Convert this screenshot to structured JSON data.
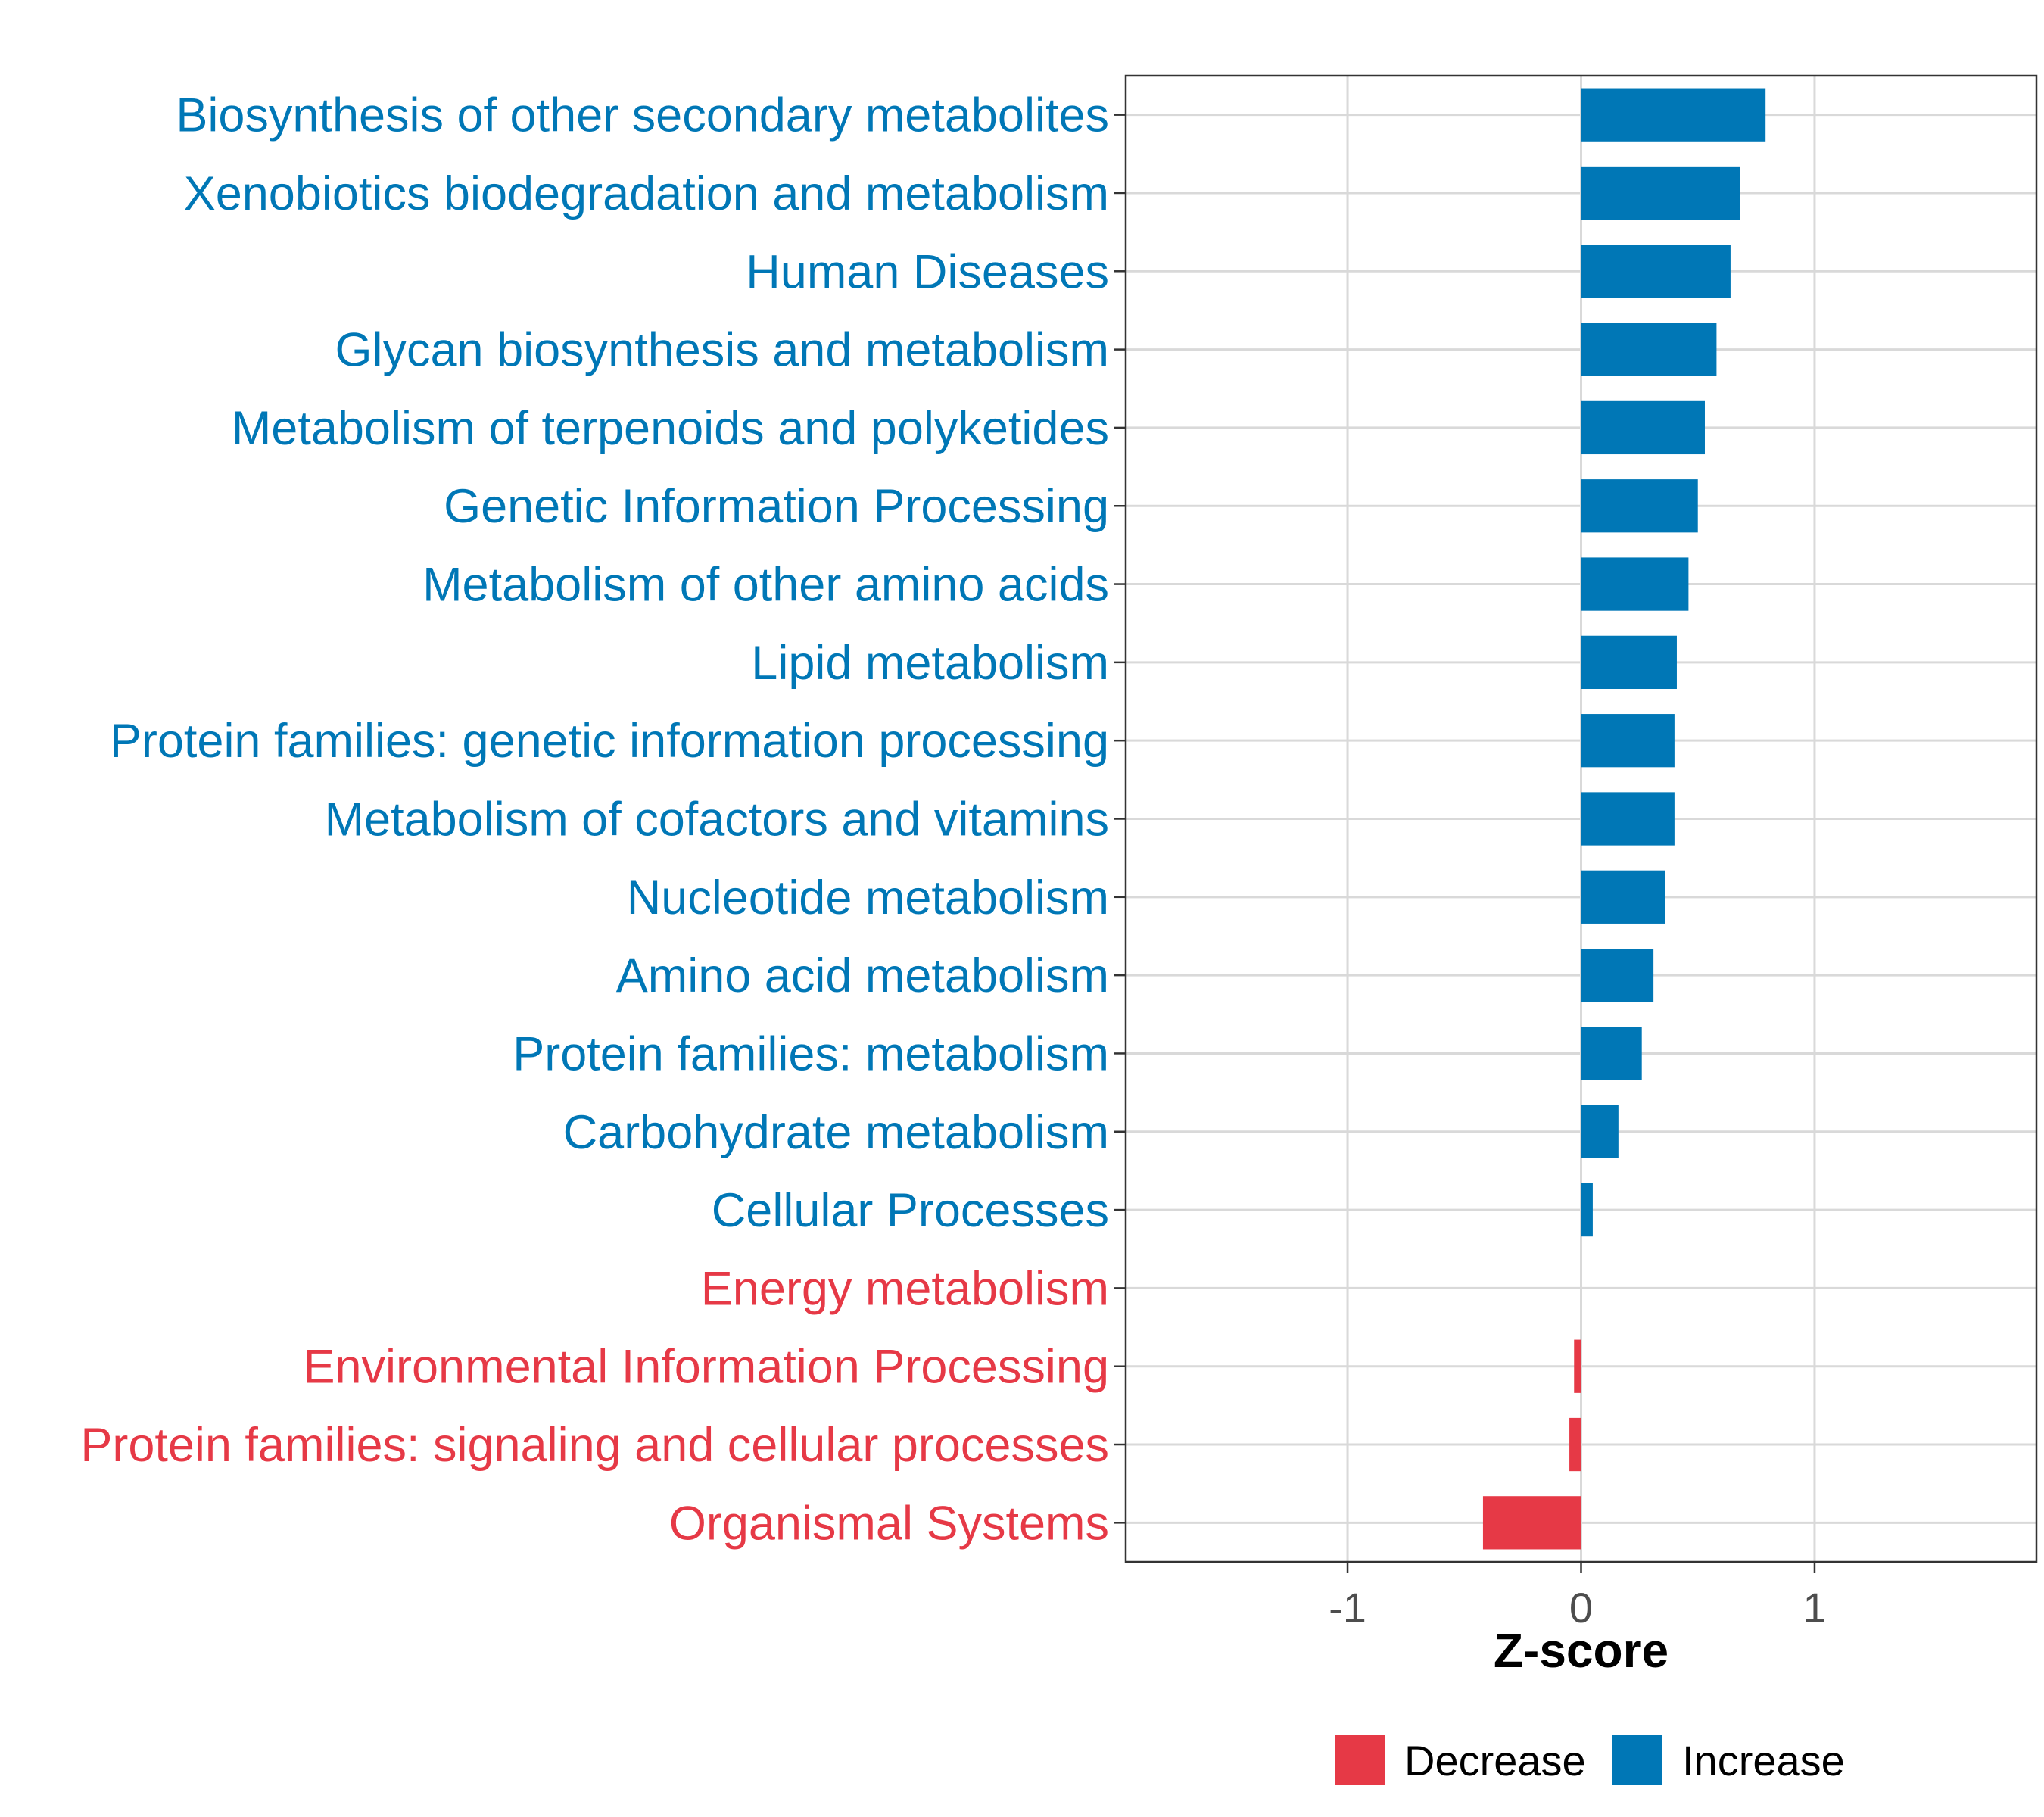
{
  "chart_data": {
    "type": "bar",
    "orientation": "horizontal",
    "title": "",
    "xlabel": "Z-score",
    "ylabel": "",
    "xlim": [
      -1.95,
      1.95
    ],
    "xticks": [
      -1,
      0,
      1
    ],
    "xtick_labels": [
      "-1",
      "0",
      "1"
    ],
    "grid": true,
    "categories": [
      "Biosynthesis of other secondary metabolites",
      "Xenobiotics biodegradation and metabolism",
      "Human Diseases",
      "Glycan biosynthesis and metabolism",
      "Metabolism of terpenoids and polyketides",
      "Genetic Information Processing",
      "Metabolism of other amino acids",
      "Lipid metabolism",
      "Protein families: genetic information processing",
      "Metabolism of cofactors and vitamins",
      "Nucleotide metabolism",
      "Amino acid metabolism",
      "Protein families: metabolism",
      "Carbohydrate metabolism",
      "Cellular Processes",
      "Energy metabolism",
      "Environmental Information Processing",
      "Protein families: signaling and cellular processes",
      "Organismal Systems"
    ],
    "values": [
      0.79,
      0.68,
      0.64,
      0.58,
      0.53,
      0.5,
      0.46,
      0.41,
      0.4,
      0.4,
      0.36,
      0.31,
      0.26,
      0.16,
      0.05,
      0.0,
      -0.03,
      -0.05,
      -0.42
    ],
    "groups": [
      "Increase",
      "Increase",
      "Increase",
      "Increase",
      "Increase",
      "Increase",
      "Increase",
      "Increase",
      "Increase",
      "Increase",
      "Increase",
      "Increase",
      "Increase",
      "Increase",
      "Increase",
      "Decrease",
      "Decrease",
      "Decrease",
      "Decrease"
    ],
    "legend": [
      {
        "label": "Decrease",
        "color": "#e63946"
      },
      {
        "label": "Increase",
        "color": "#0077b6"
      }
    ],
    "legend_position": "bottom"
  }
}
